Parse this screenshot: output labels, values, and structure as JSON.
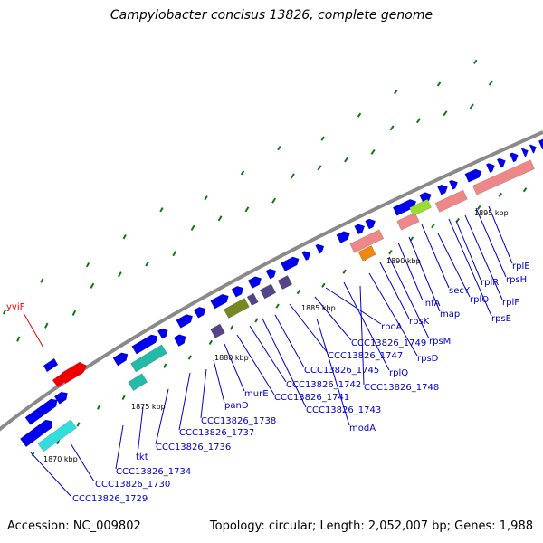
{
  "title": "Campylobacter concisus 13826, complete genome",
  "footer": {
    "accession": "Accession: NC_009802",
    "topology": "Topology: circular; Length: 2,052,007 bp; Genes: 1,988"
  },
  "ruler": [
    "1870 kbp",
    "1875 kbp",
    "1880 kbp",
    "1885 kbp",
    "1890 kbp",
    "1895 kbp"
  ],
  "colors": {
    "gene_blue": "#0000ee",
    "label_blue": "#0000cc",
    "highlight_red": "#ee0000",
    "cyan": "#33dddd",
    "teal": "#22bbaa",
    "rrna_pink": "#ee8888",
    "orange": "#ee8811",
    "olive": "#778822",
    "green": "#99dd33",
    "slate": "#554488",
    "backbone": "#808080",
    "tick_green": "#117711"
  },
  "genes": {
    "highlighted": "yviF",
    "labels": [
      "yviF",
      "CCC13826_1729",
      "CCC13826_1730",
      "CCC13826_1734",
      "tkt",
      "CCC13826_1736",
      "CCC13826_1737",
      "CCC13826_1738",
      "panD",
      "murE",
      "CCC13826_1741",
      "CCC13826_1742",
      "CCC13826_1743",
      "modA",
      "CCC13826_1745",
      "CCC13826_1747",
      "rplQ",
      "CCC13826_1748",
      "CCC13826_1749",
      "rpoA",
      "rpsD",
      "rpsK",
      "rpsM",
      "infA",
      "map",
      "secY",
      "rplO",
      "rpsE",
      "rplR",
      "rplF",
      "rpsH",
      "rplE"
    ]
  }
}
